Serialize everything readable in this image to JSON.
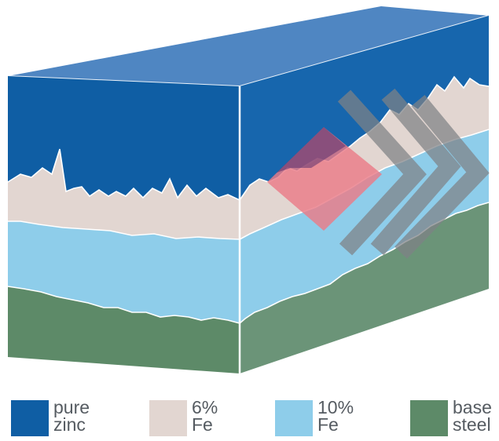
{
  "legend": [
    {
      "key": "pure-zinc",
      "line1": "pure",
      "line2": "zinc",
      "color": "#0f5ea4"
    },
    {
      "key": "6pct-fe",
      "line1": "6%",
      "line2": "Fe",
      "color": "#e2d6d1"
    },
    {
      "key": "10pct-fe",
      "line1": "10%",
      "line2": "Fe",
      "color": "#8ecdea"
    },
    {
      "key": "base-steel",
      "line1": "base",
      "line2": "steel",
      "color": "#5d8a68"
    }
  ],
  "colors": {
    "pure_zinc": "#0f5ea4",
    "pure_zinc_side": "#1766ad",
    "top_face": "#4f86c2",
    "fe6": "#e2d6d1",
    "fe10": "#8ecdea",
    "steel": "#5d8a68",
    "steel_side": "#6b9478",
    "pink_diamond": "#ea7b87",
    "chevrons": "#808080"
  }
}
